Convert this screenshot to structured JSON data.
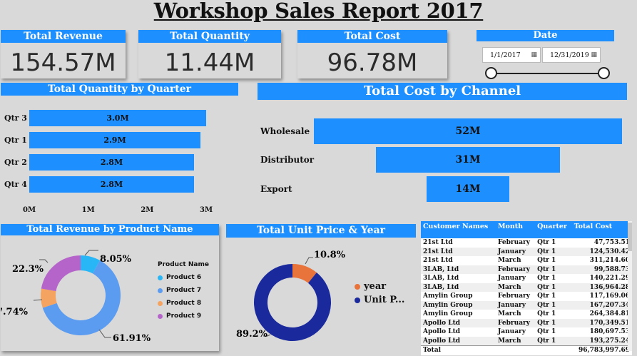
{
  "report": {
    "title": "Workshop Sales Report 2017"
  },
  "kpis": {
    "revenue": {
      "label": "Total Revenue",
      "value": "154.57M"
    },
    "quantity": {
      "label": "Total Quantity",
      "value": "11.44M"
    },
    "cost": {
      "label": "Total Cost",
      "value": "96.78M"
    }
  },
  "date_slicer": {
    "label": "Date",
    "start": "1/1/2017",
    "end": "12/31/2019",
    "range_start_fraction": 0.0,
    "range_end_fraction": 1.0
  },
  "quarter_chart": {
    "title": "Total Quantity by Quarter",
    "rows": [
      {
        "label": "Qtr 3",
        "value": 3.0,
        "display": "3.0M"
      },
      {
        "label": "Qtr 1",
        "value": 2.9,
        "display": "2.9M"
      },
      {
        "label": "Qtr 2",
        "value": 2.8,
        "display": "2.8M"
      },
      {
        "label": "Qtr 4",
        "value": 2.8,
        "display": "2.8M"
      }
    ],
    "ticks": [
      "0M",
      "1M",
      "2M",
      "3M"
    ]
  },
  "channel_chart": {
    "title": "Total Cost by Channel",
    "rows": [
      {
        "label": "Wholesale",
        "value": 52,
        "display": "52M"
      },
      {
        "label": "Distributor",
        "value": 31,
        "display": "31M"
      },
      {
        "label": "Export",
        "value": 14,
        "display": "14M"
      }
    ]
  },
  "product_donut": {
    "title": "Total Revenue by Product Name",
    "legend_title": "Product Name",
    "slices": [
      {
        "name": "Product 6",
        "pct": 8.05,
        "label": "8.05%",
        "color": "#29b6f6"
      },
      {
        "name": "Product 7",
        "pct": 61.91,
        "label": "61.91%",
        "color": "#5b9cf0"
      },
      {
        "name": "Product 8",
        "pct": 7.74,
        "label": "7.74%",
        "color": "#f4a460"
      },
      {
        "name": "Product 9",
        "pct": 22.3,
        "label": "22.3%",
        "color": "#b565c9"
      }
    ]
  },
  "unit_donut": {
    "title": "Total Unit Price & Year",
    "slices": [
      {
        "name": "year",
        "pct": 10.8,
        "label": "10.8%",
        "color": "#e8743b"
      },
      {
        "name": "Unit P...",
        "pct": 89.2,
        "label": "89.2%",
        "color": "#1a2a9c"
      }
    ]
  },
  "chart_data": [
    {
      "type": "bar",
      "title": "Total Quantity by Quarter",
      "categories": [
        "Qtr 3",
        "Qtr 1",
        "Qtr 2",
        "Qtr 4"
      ],
      "values": [
        3.0,
        2.9,
        2.8,
        2.8
      ],
      "xlim": [
        0,
        3
      ]
    },
    {
      "type": "bar",
      "title": "Total Cost by Channel",
      "categories": [
        "Wholesale",
        "Distributor",
        "Export"
      ],
      "values": [
        52,
        31,
        14
      ]
    },
    {
      "type": "pie",
      "title": "Total Revenue by Product Name",
      "categories": [
        "Product 6",
        "Product 7",
        "Product 8",
        "Product 9"
      ],
      "values": [
        8.05,
        61.91,
        7.74,
        22.3
      ]
    },
    {
      "type": "pie",
      "title": "Total Unit Price & Year",
      "categories": [
        "year",
        "Unit P..."
      ],
      "values": [
        10.8,
        89.2
      ]
    }
  ],
  "table": {
    "columns": [
      "Customer Names",
      "Month",
      "Quarter",
      "Total Cost"
    ],
    "rows": [
      [
        "21st Ltd",
        "February",
        "Qtr 1",
        "47,753.51"
      ],
      [
        "21st Ltd",
        "January",
        "Qtr 1",
        "124,530.42"
      ],
      [
        "21st Ltd",
        "March",
        "Qtr 1",
        "311,214.60"
      ],
      [
        "3LAB, Ltd",
        "February",
        "Qtr 1",
        "99,588.73"
      ],
      [
        "3LAB, Ltd",
        "January",
        "Qtr 1",
        "140,221.29"
      ],
      [
        "3LAB, Ltd",
        "March",
        "Qtr 1",
        "136,964.28"
      ],
      [
        "Amylin Group",
        "February",
        "Qtr 1",
        "117,169.06"
      ],
      [
        "Amylin Group",
        "January",
        "Qtr 1",
        "167,207.34"
      ],
      [
        "Amylin Group",
        "March",
        "Qtr 1",
        "264,384.81"
      ],
      [
        "Apollo Ltd",
        "February",
        "Qtr 1",
        "170,349.51"
      ],
      [
        "Apollo Ltd",
        "January",
        "Qtr 1",
        "180,697.53"
      ],
      [
        "Apollo Ltd",
        "March",
        "Qtr 1",
        "193,275.24"
      ]
    ],
    "total_label": "Total",
    "total_value": "96,783,997.69"
  }
}
